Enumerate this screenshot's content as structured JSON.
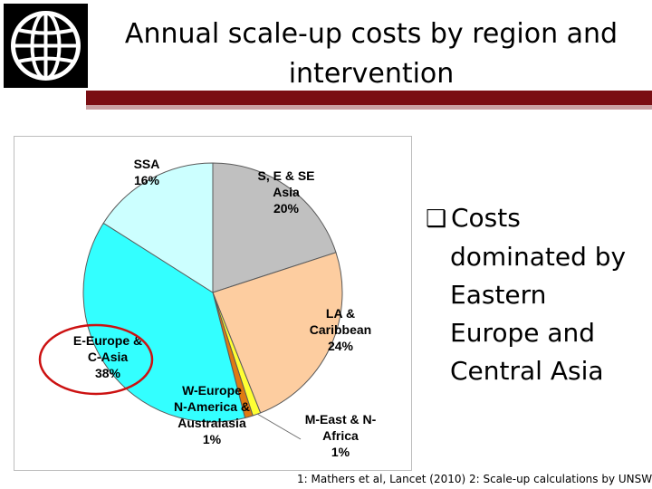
{
  "header": {
    "title_line1": "Annual scale-up costs by region and",
    "title_line2": "intervention"
  },
  "logo": {
    "icon": "globe-icon"
  },
  "chart_data": {
    "type": "pie",
    "slices": [
      {
        "name": "S, E & SE Asia",
        "label_lines": [
          "S, E & SE",
          "Asia",
          "20%"
        ],
        "value": 20,
        "color": "#c0c0c0"
      },
      {
        "name": "LA & Caribbean",
        "label_lines": [
          "LA &",
          "Caribbean",
          "24%"
        ],
        "value": 24,
        "color": "#fdcda0"
      },
      {
        "name": "M-East & N-Africa",
        "label_lines": [
          "M-East & N-",
          "Africa",
          "1%"
        ],
        "value": 1,
        "color": "#ffff33"
      },
      {
        "name": "W-Europe N-America & Australasia",
        "label_lines": [
          "W-Europe",
          "N-America &",
          "Australasia",
          "1%"
        ],
        "value": 1,
        "color": "#e07a12"
      },
      {
        "name": "E-Europe & C-Asia",
        "label_lines": [
          "E-Europe &",
          "C-Asia",
          "38%"
        ],
        "value": 38,
        "color": "#33ffff"
      },
      {
        "name": "SSA",
        "label_lines": [
          "SSA",
          "16%"
        ],
        "value": 16,
        "color": "#ccffff"
      }
    ],
    "highlight": {
      "slice": "E-Europe & C-Asia",
      "color": "#cc1111"
    }
  },
  "bullet": {
    "marker": "❑",
    "line1": "Costs",
    "lines": [
      "dominated by",
      "Eastern",
      "Europe and",
      "Central Asia"
    ]
  },
  "footnote": "1: Mathers et al, Lancet (2010)   2: Scale-up calculations by UNSW",
  "colors": {
    "rule_dark": "#7a0e13",
    "rule_light": "#c9a1a3",
    "highlight_ring": "#cc1111"
  }
}
